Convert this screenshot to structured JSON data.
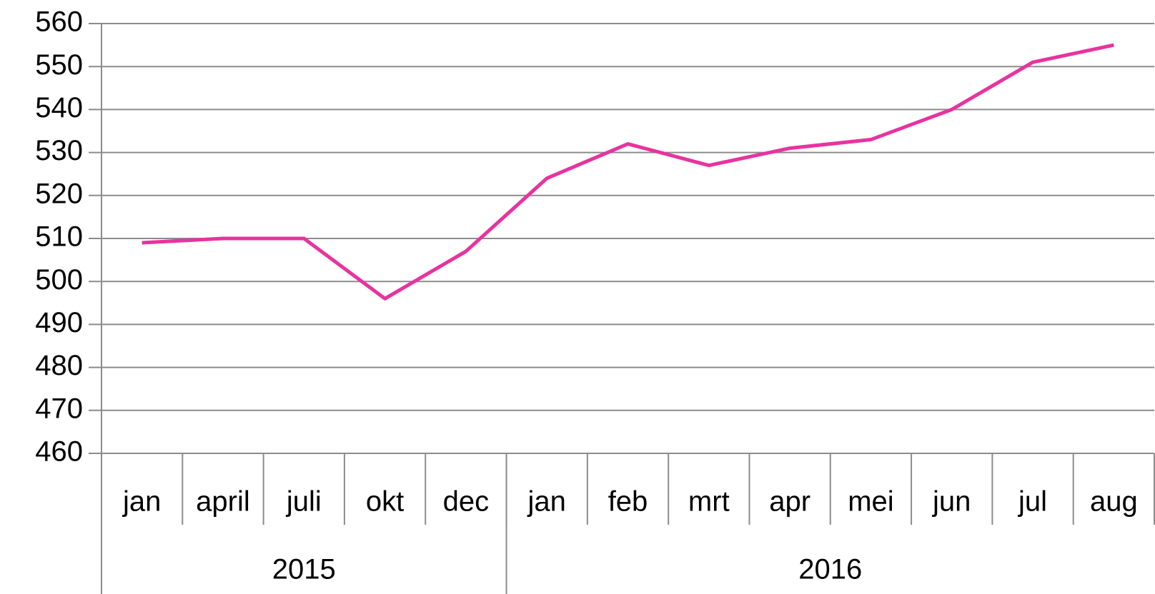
{
  "chart_data": {
    "type": "line",
    "categories": [
      "jan",
      "april",
      "juli",
      "okt",
      "dec",
      "jan",
      "feb",
      "mrt",
      "apr",
      "mei",
      "jun",
      "jul",
      "aug"
    ],
    "groups": [
      {
        "name": "2015",
        "count": 5
      },
      {
        "name": "2016",
        "count": 8
      }
    ],
    "values": [
      509,
      510,
      510,
      496,
      507,
      524,
      532,
      527,
      531,
      533,
      540,
      551,
      555
    ],
    "color": "#e8339f",
    "ylim": [
      460,
      560
    ],
    "yticks": [
      460,
      470,
      480,
      490,
      500,
      510,
      520,
      530,
      540,
      550,
      560
    ],
    "grid": true
  }
}
